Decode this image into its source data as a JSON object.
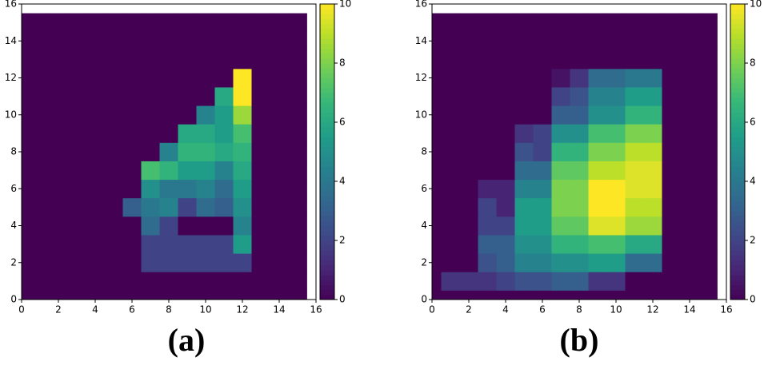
{
  "chart_data": [
    {
      "type": "heatmap",
      "label": "(a)",
      "cmap": "viridis",
      "xlim": [
        0,
        16
      ],
      "ylim": [
        0,
        16
      ],
      "xticks": [
        0,
        2,
        4,
        6,
        8,
        10,
        12,
        14,
        16
      ],
      "yticks": [
        0,
        2,
        4,
        6,
        8,
        10,
        12,
        14,
        16
      ],
      "clim": [
        0,
        10
      ],
      "cticks": [
        0,
        2,
        4,
        6,
        8,
        10
      ],
      "z": [
        [
          0,
          0,
          0,
          0,
          0,
          0,
          0,
          0,
          0,
          0,
          0,
          0,
          0,
          0,
          0,
          0
        ],
        [
          0,
          0,
          0,
          0,
          0,
          0,
          0,
          0,
          0,
          0,
          0,
          0,
          0,
          0,
          0,
          0
        ],
        [
          0,
          0,
          0,
          0,
          0,
          0,
          0,
          2,
          2,
          2,
          2,
          2,
          2,
          0,
          0,
          0
        ],
        [
          0,
          0,
          0,
          0,
          0,
          0,
          0,
          2,
          2,
          2,
          2,
          2,
          5.5,
          0,
          0,
          0
        ],
        [
          0,
          0,
          0,
          0,
          0,
          0,
          0,
          3.5,
          2,
          0,
          0,
          0,
          4.5,
          0,
          0,
          0
        ],
        [
          0,
          0,
          0,
          0,
          0,
          0,
          3,
          4,
          4.5,
          2,
          3.5,
          3,
          5,
          0,
          0,
          0
        ],
        [
          0,
          0,
          0,
          0,
          0,
          0,
          0,
          5,
          4,
          4,
          4.5,
          3.5,
          5.5,
          0,
          0,
          0
        ],
        [
          0,
          0,
          0,
          0,
          0,
          0,
          0,
          7,
          6.5,
          5.5,
          5.5,
          4.5,
          6,
          0,
          0,
          0
        ],
        [
          0,
          0,
          0,
          0,
          0,
          0,
          0,
          0,
          4.5,
          6.5,
          6.5,
          6,
          6.5,
          0,
          0,
          0
        ],
        [
          0,
          0,
          0,
          0,
          0,
          0,
          0,
          0,
          0,
          6,
          6,
          5.5,
          7,
          0,
          0,
          0
        ],
        [
          0,
          0,
          0,
          0,
          0,
          0,
          0,
          0,
          0,
          0,
          4.5,
          5.5,
          8.5,
          0,
          0,
          0
        ],
        [
          0,
          0,
          0,
          0,
          0,
          0,
          0,
          0,
          0,
          0,
          0,
          6,
          10,
          0,
          0,
          0
        ],
        [
          0,
          0,
          0,
          0,
          0,
          0,
          0,
          0,
          0,
          0,
          0,
          0,
          10,
          0,
          0,
          0
        ],
        [
          0,
          0,
          0,
          0,
          0,
          0,
          0,
          0,
          0,
          0,
          0,
          0,
          0,
          0,
          0,
          0
        ],
        [
          0,
          0,
          0,
          0,
          0,
          0,
          0,
          0,
          0,
          0,
          0,
          0,
          0,
          0,
          0,
          0
        ],
        [
          0,
          0,
          0,
          0,
          0,
          0,
          0,
          0,
          0,
          0,
          0,
          0,
          0,
          0,
          0,
          0
        ]
      ]
    },
    {
      "type": "heatmap",
      "label": "(b)",
      "cmap": "viridis",
      "xlim": [
        0,
        16
      ],
      "ylim": [
        0,
        16
      ],
      "xticks": [
        0,
        2,
        4,
        6,
        8,
        10,
        12,
        14,
        16
      ],
      "yticks": [
        0,
        2,
        4,
        6,
        8,
        10,
        12,
        14,
        16
      ],
      "clim": [
        0,
        10
      ],
      "cticks": [
        0,
        2,
        4,
        6,
        8,
        10
      ],
      "z": [
        [
          0,
          0,
          0,
          0,
          0,
          0,
          0,
          0,
          0,
          0,
          0,
          0,
          0,
          0,
          0,
          0
        ],
        [
          0,
          1.5,
          1.5,
          1.5,
          2,
          2.5,
          2.5,
          3,
          3,
          1.5,
          1.5,
          0,
          0,
          0,
          0,
          0
        ],
        [
          0,
          0,
          0,
          2.5,
          3,
          4.5,
          4.5,
          5,
          5,
          5.5,
          5.5,
          3.5,
          3.5,
          0,
          0,
          0
        ],
        [
          0,
          0,
          0,
          3,
          3,
          5,
          5,
          6.5,
          6.5,
          7,
          7,
          6,
          6,
          0,
          0,
          0
        ],
        [
          0,
          0,
          0,
          2,
          2,
          5.5,
          5.5,
          7.5,
          7.5,
          9.5,
          9.5,
          8.5,
          8.5,
          0,
          0,
          0
        ],
        [
          0,
          0,
          0,
          2,
          1,
          5.5,
          5.5,
          8,
          8,
          10,
          10,
          9,
          9,
          0,
          0,
          0
        ],
        [
          0,
          0,
          0,
          1,
          1,
          4.5,
          4.5,
          8,
          8,
          10,
          10,
          9.5,
          9.5,
          0,
          0,
          0
        ],
        [
          0,
          0,
          0,
          0,
          0,
          3.5,
          3.5,
          7.5,
          7.5,
          9,
          9,
          9.5,
          9.5,
          0,
          0,
          0
        ],
        [
          0,
          0,
          0,
          0,
          0,
          2.5,
          2,
          6.5,
          6.5,
          8,
          8,
          9,
          9,
          0,
          0,
          0
        ],
        [
          0,
          0,
          0,
          0,
          0,
          1.5,
          2,
          5,
          5,
          7,
          7,
          8,
          8,
          0,
          0,
          0
        ],
        [
          0,
          0,
          0,
          0,
          0,
          0,
          0,
          3,
          3,
          5,
          5,
          6.5,
          6.5,
          0,
          0,
          0
        ],
        [
          0,
          0,
          0,
          0,
          0,
          0,
          0,
          2,
          2.5,
          4.5,
          4.5,
          5.5,
          5.5,
          0,
          0,
          0
        ],
        [
          0,
          0,
          0,
          0,
          0,
          0,
          0,
          0.5,
          1.5,
          3.5,
          3.5,
          4,
          4,
          0,
          0,
          0
        ],
        [
          0,
          0,
          0,
          0,
          0,
          0,
          0,
          0,
          0,
          0,
          0,
          0,
          0,
          0,
          0,
          0
        ],
        [
          0,
          0,
          0,
          0,
          0,
          0,
          0,
          0,
          0,
          0,
          0,
          0,
          0,
          0,
          0,
          0
        ],
        [
          0,
          0,
          0,
          0,
          0,
          0,
          0,
          0,
          0,
          0,
          0,
          0,
          0,
          0,
          0,
          0
        ]
      ]
    }
  ]
}
